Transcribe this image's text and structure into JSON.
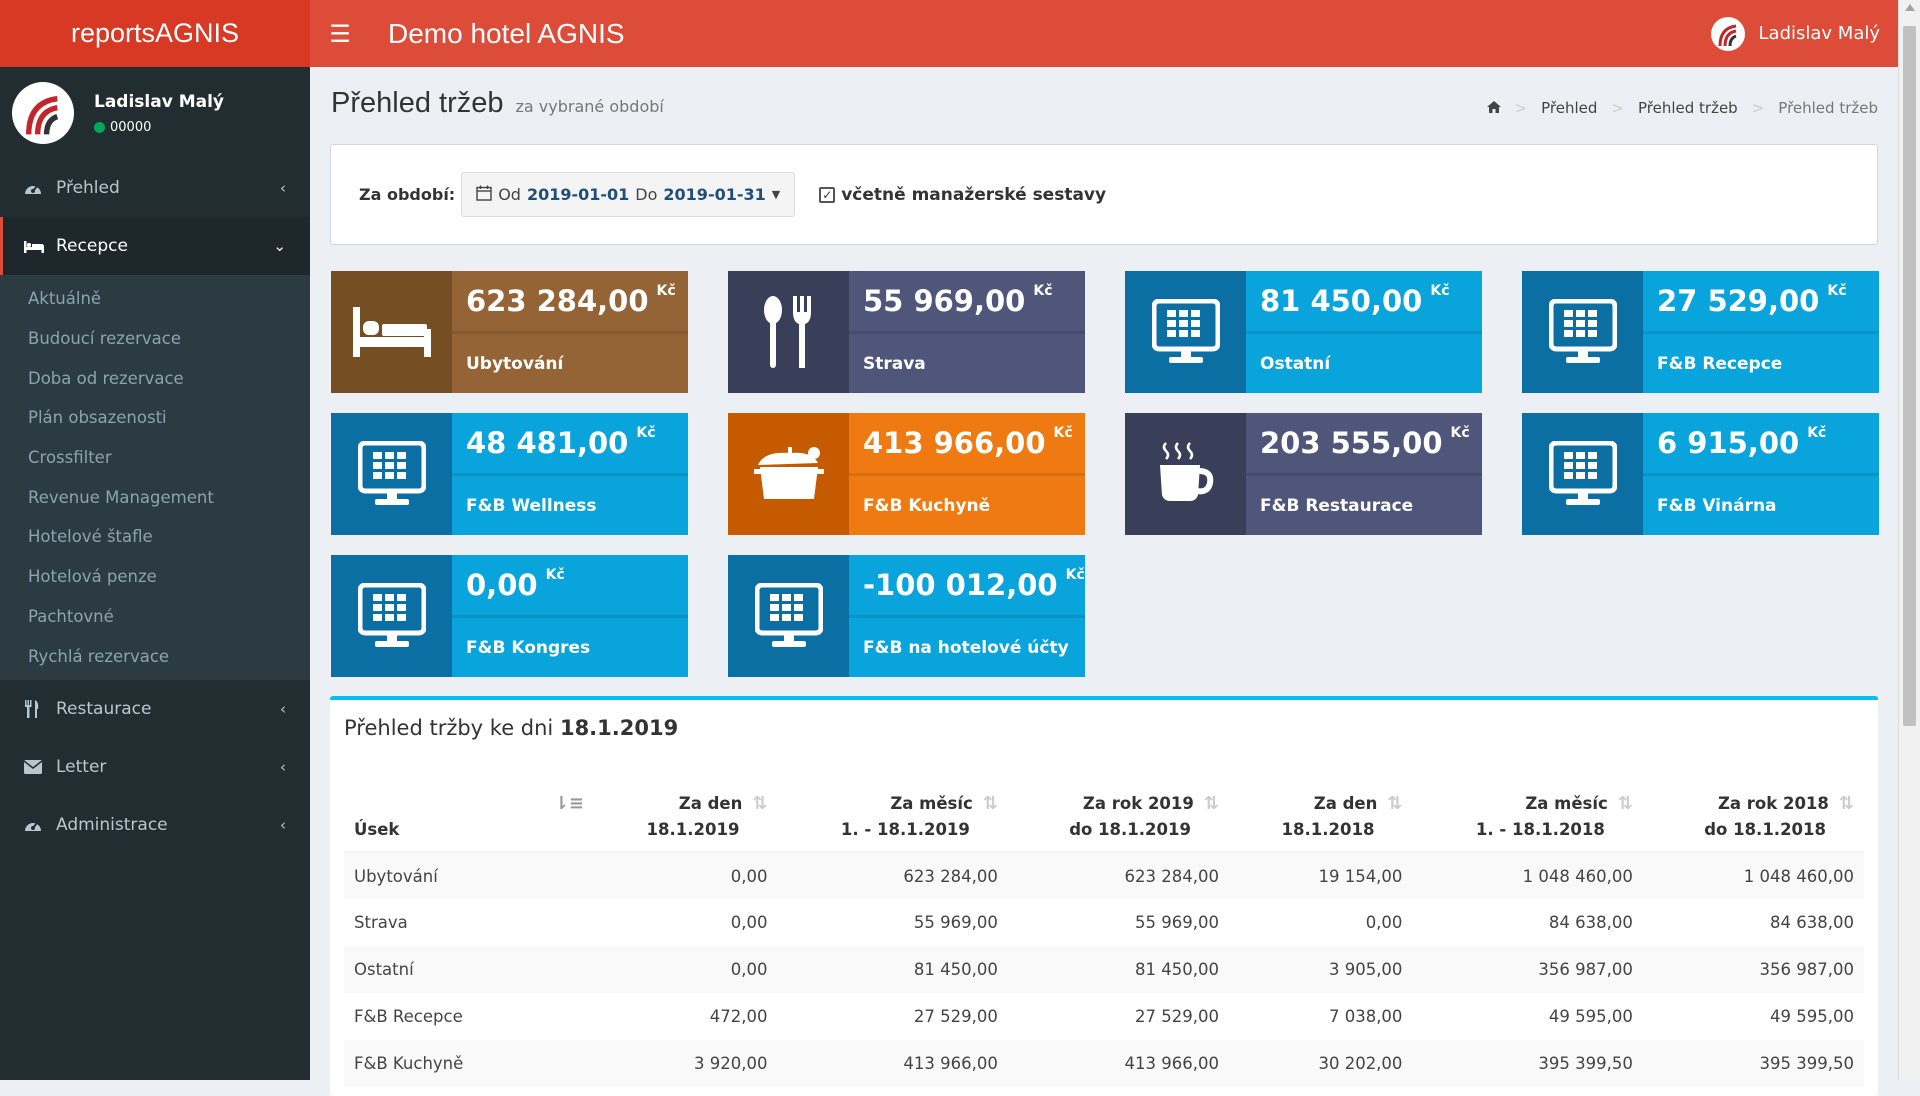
{
  "app": {
    "logo_text": "reportsAGNIS",
    "title": "Demo hotel AGNIS",
    "user_name": "Ladislav Malý"
  },
  "sidebar": {
    "user": {
      "name": "Ladislav Malý",
      "status": "00000"
    },
    "items": [
      {
        "label": "Přehled",
        "icon": "dashboard-icon"
      },
      {
        "label": "Recepce",
        "icon": "bed-icon"
      },
      {
        "label": "Restaurace",
        "icon": "cutlery-icon"
      },
      {
        "label": "Letter",
        "icon": "envelope-icon"
      },
      {
        "label": "Administrace",
        "icon": "dashboard-icon"
      }
    ],
    "recepce_sub": [
      "Aktuálně",
      "Budoucí rezervace",
      "Doba od rezervace",
      "Plán obsazenosti",
      "Crossfilter",
      "Revenue Management",
      "Hotelové štafle",
      "Hotelová penze",
      "Pachtovné",
      "Rychlá rezervace"
    ]
  },
  "header": {
    "title": "Přehled tržeb",
    "subtitle": "za vybrané období"
  },
  "breadcrumb": [
    "Přehled",
    "Přehled tržeb",
    "Přehled tržeb"
  ],
  "filter": {
    "label": "Za období:",
    "from_prefix": "Od",
    "from": "2019-01-01",
    "to_prefix": "Do",
    "to": "2019-01-31",
    "checkbox_label": "včetně manažerské sestavy",
    "checked": true
  },
  "tiles": [
    {
      "value": "623 284,00",
      "currency": "Kč",
      "label": "Ubytování",
      "color": "brown",
      "icon": "bed-icon"
    },
    {
      "value": "55 969,00",
      "currency": "Kč",
      "label": "Strava",
      "color": "slate",
      "icon": "cutlery-icon"
    },
    {
      "value": "81 450,00",
      "currency": "Kč",
      "label": "Ostatní",
      "color": "blue",
      "icon": "monitor-icon"
    },
    {
      "value": "27 529,00",
      "currency": "Kč",
      "label": "F&B Recepce",
      "color": "blue",
      "icon": "monitor-icon"
    },
    {
      "value": "48 481,00",
      "currency": "Kč",
      "label": "F&B Wellness",
      "color": "blue",
      "icon": "monitor-icon"
    },
    {
      "value": "413 966,00",
      "currency": "Kč",
      "label": "F&B Kuchyně",
      "color": "orange",
      "icon": "pot-icon"
    },
    {
      "value": "203 555,00",
      "currency": "Kč",
      "label": "F&B Restaurace",
      "color": "slate",
      "icon": "coffee-icon"
    },
    {
      "value": "6 915,00",
      "currency": "Kč",
      "label": "F&B Vinárna",
      "color": "blue",
      "icon": "monitor-icon"
    },
    {
      "value": "0,00",
      "currency": "Kč",
      "label": "F&B Kongres",
      "color": "blue",
      "icon": "monitor-icon"
    },
    {
      "value": "-100 012,00",
      "currency": "Kč",
      "label": "F&B na hotelové účty",
      "color": "blue",
      "icon": "monitor-icon"
    }
  ],
  "table": {
    "title_prefix": "Přehled tržby ke dni",
    "title_date": "18.1.2019",
    "headers": [
      {
        "l1": "",
        "l2": "Úsek"
      },
      {
        "l1": "Za den",
        "l2": "18.1.2019"
      },
      {
        "l1": "Za měsíc",
        "l2": "1. - 18.1.2019"
      },
      {
        "l1": "Za rok 2019",
        "l2": "do 18.1.2019"
      },
      {
        "l1": "Za den",
        "l2": "18.1.2018"
      },
      {
        "l1": "Za měsíc",
        "l2": "1. - 18.1.2018"
      },
      {
        "l1": "Za rok 2018",
        "l2": "do 18.1.2018"
      }
    ],
    "rows": [
      [
        "Ubytování",
        "0,00",
        "623 284,00",
        "623 284,00",
        "19 154,00",
        "1 048 460,00",
        "1 048 460,00"
      ],
      [
        "Strava",
        "0,00",
        "55 969,00",
        "55 969,00",
        "0,00",
        "84 638,00",
        "84 638,00"
      ],
      [
        "Ostatní",
        "0,00",
        "81 450,00",
        "81 450,00",
        "3 905,00",
        "356 987,00",
        "356 987,00"
      ],
      [
        "F&B Recepce",
        "472,00",
        "27 529,00",
        "27 529,00",
        "7 038,00",
        "49 595,00",
        "49 595,00"
      ],
      [
        "F&B Kuchyně",
        "3 920,00",
        "413 966,00",
        "413 966,00",
        "30 202,00",
        "395 399,50",
        "395 399,50"
      ]
    ]
  },
  "colors": {
    "header_red": "#dd4b39",
    "logo_red": "#d73925",
    "sidebar": "#222d32",
    "tile_blue": "#0aa4dc",
    "tile_orange": "#f07a12",
    "tile_brown": "#946436",
    "tile_slate": "#4f5679",
    "table_accent": "#00c0ef"
  }
}
